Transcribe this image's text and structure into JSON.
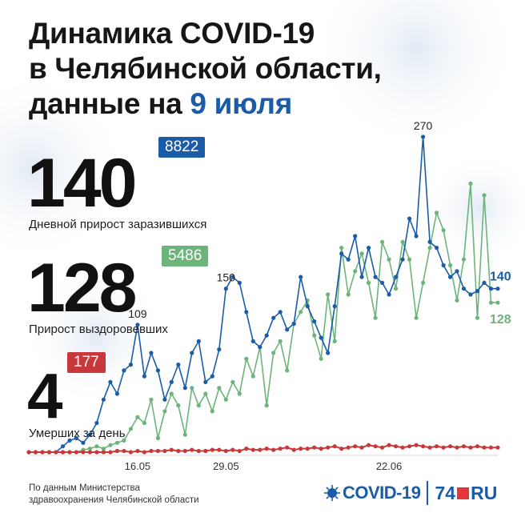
{
  "header": {
    "title_line1": "Динамика COVID-19",
    "title_line2": "в Челябинской области,",
    "title_line3_prefix": "данные на ",
    "title_line3_date": "9 июля"
  },
  "stats": {
    "infected": {
      "value": "140",
      "total": "8822",
      "label": "Дневной прирост заразившихся"
    },
    "recovered": {
      "value": "128",
      "total": "5486",
      "label": "Прирост выздоровевших"
    },
    "deaths": {
      "value": "4",
      "total": "177",
      "label": "Умерших за день"
    }
  },
  "footer": {
    "source_line1": "По данным Министерства",
    "source_line2": "здравоохранения Челябинской области",
    "logo_covid": "COVID-19",
    "logo_site_num": "74",
    "logo_site_tld": "RU"
  },
  "colors": {
    "infected": "#1a5ca8",
    "recovered": "#6db47a",
    "deaths": "#c8383b",
    "accent": "#1a5ca8"
  },
  "icons": [
    "virus-icon"
  ],
  "chart_data": {
    "type": "line",
    "x_tick_labels": [
      "16.05",
      "29.05",
      "22.06"
    ],
    "x_tick_index": [
      16,
      29,
      53
    ],
    "annotations": [
      {
        "index": 16,
        "series": "infected",
        "text": "109"
      },
      {
        "index": 29,
        "series": "infected",
        "text": "150"
      },
      {
        "index": 58,
        "series": "infected",
        "text": "270"
      },
      {
        "index": 69,
        "series": "infected",
        "text": "140"
      },
      {
        "index": 69,
        "series": "recovered",
        "text": "128"
      }
    ],
    "ylim": [
      0,
      280
    ],
    "series": [
      {
        "key": "infected",
        "values": [
          0,
          0,
          0,
          0,
          0,
          5,
          10,
          12,
          8,
          15,
          25,
          45,
          60,
          50,
          70,
          75,
          109,
          65,
          85,
          70,
          45,
          60,
          75,
          55,
          85,
          95,
          60,
          65,
          88,
          140,
          150,
          145,
          120,
          95,
          90,
          100,
          115,
          120,
          105,
          110,
          150,
          125,
          112,
          98,
          85,
          125,
          170,
          165,
          185,
          150,
          175,
          150,
          145,
          135,
          150,
          165,
          200,
          185,
          270,
          180,
          175,
          160,
          150,
          155,
          140,
          135,
          138,
          145,
          140,
          140
        ]
      },
      {
        "key": "recovered",
        "values": [
          0,
          0,
          0,
          0,
          0,
          0,
          0,
          0,
          2,
          3,
          5,
          3,
          6,
          8,
          10,
          20,
          30,
          25,
          45,
          12,
          35,
          50,
          40,
          15,
          55,
          40,
          50,
          35,
          55,
          45,
          60,
          50,
          80,
          65,
          90,
          40,
          85,
          95,
          70,
          110,
          120,
          130,
          100,
          80,
          135,
          95,
          175,
          135,
          155,
          170,
          145,
          115,
          180,
          165,
          140,
          180,
          165,
          115,
          145,
          175,
          205,
          190,
          160,
          130,
          165,
          230,
          115,
          220,
          128,
          128
        ]
      },
      {
        "key": "deaths",
        "values": [
          0,
          0,
          0,
          0,
          0,
          0,
          0,
          0,
          0,
          0,
          0,
          0,
          0,
          1,
          1,
          0,
          1,
          0,
          1,
          1,
          1,
          2,
          1,
          1,
          2,
          1,
          1,
          2,
          2,
          1,
          2,
          1,
          3,
          2,
          2,
          3,
          2,
          3,
          4,
          2,
          3,
          3,
          4,
          3,
          4,
          5,
          3,
          4,
          5,
          4,
          6,
          5,
          4,
          6,
          5,
          4,
          5,
          6,
          5,
          4,
          5,
          4,
          5,
          4,
          5,
          4,
          5,
          4,
          4,
          4
        ]
      }
    ],
    "grid": false,
    "legend": "none"
  }
}
